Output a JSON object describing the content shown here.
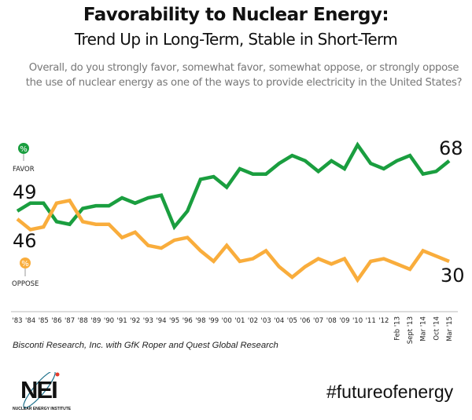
{
  "header": {
    "title": "Favorability to Nuclear Energy:",
    "subtitle": "Trend Up in Long-Term, Stable in Short-Term",
    "question": "Overall, do you strongly favor, somewhat favor, somewhat oppose, or strongly oppose the use of nuclear energy as one of the ways to provide electricity in the United States?"
  },
  "chart_data": {
    "type": "line",
    "categories": [
      "'83",
      "'84",
      "'85",
      "'86",
      "'87",
      "'88",
      "'89",
      "'90",
      "'91",
      "'92",
      "'93",
      "'94",
      "'95",
      "'96",
      "'98",
      "'99",
      "'00",
      "'01",
      "'02",
      "'03",
      "'04",
      "'05",
      "'06",
      "'07",
      "'08",
      "'09",
      "'10",
      "'11",
      "'12",
      "Feb '13",
      "Sept '13",
      "Mar '14",
      "Oct '14",
      "Mar '15"
    ],
    "series": [
      {
        "name": "FAVOR",
        "legend_symbol": "%",
        "color": "#1a9e3f",
        "start_label": "49",
        "end_label": "68",
        "values": [
          49,
          52,
          52,
          45,
          44,
          50,
          51,
          51,
          54,
          52,
          54,
          55,
          43,
          49,
          61,
          62,
          58,
          65,
          63,
          63,
          67,
          70,
          68,
          64,
          68,
          65,
          74,
          67,
          65,
          68,
          70,
          63,
          64,
          68
        ]
      },
      {
        "name": "OPPOSE",
        "legend_symbol": "%",
        "color": "#f9ad3c",
        "start_label": "46",
        "end_label": "30",
        "values": [
          46,
          42,
          43,
          52,
          53,
          45,
          44,
          44,
          39,
          41,
          36,
          35,
          38,
          39,
          34,
          30,
          36,
          30,
          31,
          34,
          28,
          24,
          28,
          31,
          29,
          31,
          23,
          30,
          31,
          29,
          27,
          34,
          32,
          30
        ]
      }
    ],
    "rotated_tick_labels_from": "Feb '13",
    "grid": false,
    "legend": "left"
  },
  "footer": {
    "source": "Bisconti Research, Inc. with GfK Roper and Quest Global Research",
    "logo_text": "NEI",
    "logo_subtext": "NUCLEAR ENERGY INSTITUTE",
    "hashtag": "#futureofenergy"
  }
}
